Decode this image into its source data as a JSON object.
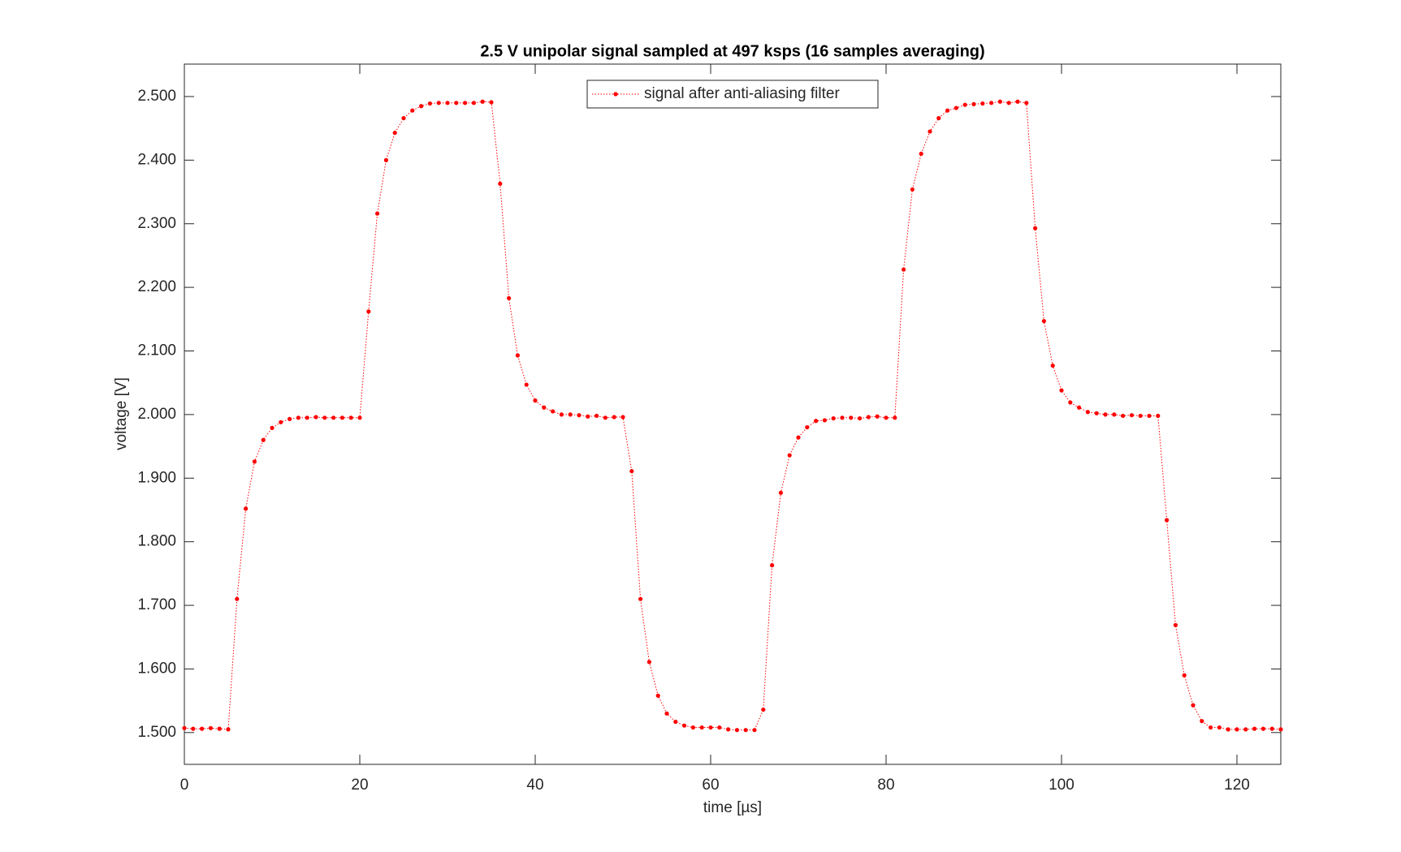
{
  "chart_data": {
    "type": "line",
    "title": "2.5 V unipolar signal sampled at 497 ksps (16 samples averaging)",
    "x_label": "time [µs]",
    "y_label": "voltage [V]",
    "x": [
      0,
      1,
      2,
      3,
      4,
      5,
      6,
      7,
      8,
      9,
      10,
      11,
      12,
      13,
      14,
      15,
      16,
      17,
      18,
      19,
      20,
      21,
      22,
      23,
      24,
      25,
      26,
      27,
      28,
      29,
      30,
      31,
      32,
      33,
      34,
      35,
      36,
      37,
      38,
      39,
      40,
      41,
      42,
      43,
      44,
      45,
      46,
      47,
      48,
      49,
      50,
      51,
      52,
      53,
      54,
      55,
      56,
      57,
      58,
      59,
      60,
      61,
      62,
      63,
      64,
      65,
      66,
      67,
      68,
      69,
      70,
      71,
      72,
      73,
      74,
      75,
      76,
      77,
      78,
      79,
      80,
      81,
      82,
      83,
      84,
      85,
      86,
      87,
      88,
      89,
      90,
      91,
      92,
      93,
      94,
      95,
      96,
      97,
      98,
      99,
      100,
      101,
      102,
      103,
      104,
      105,
      106,
      107,
      108,
      109,
      110,
      111,
      112,
      113,
      114,
      115,
      116,
      117,
      118,
      119,
      120,
      121,
      122,
      123,
      124,
      125
    ],
    "series": [
      {
        "name": "signal after anti-aliasing filter",
        "color": "#ff0000",
        "values": [
          1.507,
          1.506,
          1.506,
          1.507,
          1.506,
          1.505,
          1.71,
          1.852,
          1.926,
          1.96,
          1.979,
          1.988,
          1.993,
          1.995,
          1.995,
          1.996,
          1.995,
          1.995,
          1.995,
          1.995,
          1.995,
          2.162,
          2.316,
          2.4,
          2.443,
          2.466,
          2.478,
          2.485,
          2.489,
          2.49,
          2.49,
          2.49,
          2.49,
          2.49,
          2.492,
          2.491,
          2.363,
          2.183,
          2.093,
          2.047,
          2.022,
          2.011,
          2.005,
          2.0,
          2.0,
          1.999,
          1.997,
          1.998,
          1.995,
          1.996,
          1.996,
          1.911,
          1.71,
          1.611,
          1.558,
          1.53,
          1.517,
          1.511,
          1.508,
          1.508,
          1.508,
          1.508,
          1.505,
          1.504,
          1.504,
          1.504,
          1.536,
          1.763,
          1.877,
          1.936,
          1.964,
          1.98,
          1.99,
          1.991,
          1.994,
          1.995,
          1.995,
          1.994,
          1.996,
          1.997,
          1.995,
          1.995,
          2.228,
          2.354,
          2.41,
          2.445,
          2.466,
          2.478,
          2.482,
          2.487,
          2.488,
          2.489,
          2.49,
          2.492,
          2.49,
          2.492,
          2.49,
          2.293,
          2.147,
          2.077,
          2.038,
          2.019,
          2.011,
          2.004,
          2.002,
          2.0,
          2.0,
          1.998,
          1.999,
          1.998,
          1.998,
          1.998,
          1.834,
          1.669,
          1.59,
          1.543,
          1.518,
          1.508,
          1.508,
          1.505,
          1.505,
          1.505,
          1.506,
          1.506,
          1.506,
          1.505
        ]
      }
    ],
    "xlim": [
      0,
      125
    ],
    "xticks": [
      0,
      20,
      40,
      60,
      80,
      100,
      120
    ],
    "ylim": [
      1.45,
      2.551
    ],
    "yticks": [
      {
        "value": 1.5,
        "label": "1.500"
      },
      {
        "value": 1.6,
        "label": "1.600"
      },
      {
        "value": 1.7,
        "label": "1.700"
      },
      {
        "value": 1.8,
        "label": "1.800"
      },
      {
        "value": 1.9,
        "label": "1.900"
      },
      {
        "value": 2.0,
        "label": "2.000"
      },
      {
        "value": 2.1,
        "label": "2.100"
      },
      {
        "value": 2.2,
        "label": "2.200"
      },
      {
        "value": 2.3,
        "label": "2.300"
      },
      {
        "value": 2.4,
        "label": "2.400"
      },
      {
        "value": 2.5,
        "label": "2.500"
      }
    ],
    "legend": "top-center"
  }
}
